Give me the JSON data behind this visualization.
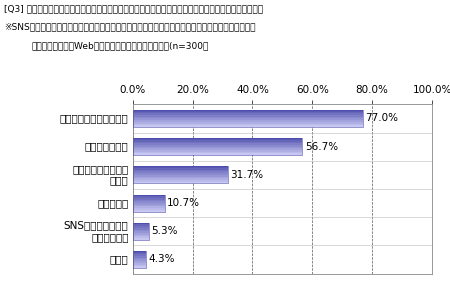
{
  "title_line1": "[Q3] 金融商品に関する情報を収集する際に、インターネット上で参考にするものを全てお答え下さい。",
  "title_line2": "※SNSとはソーシャルネットワークサービスのことで、人と人とのつながりを促進・サポートする、",
  "title_line3": "コミュニティ型のWebサイトをさします（複数回答）(n=300）",
  "categories": [
    "証券・金融会社のサイト",
    "ニュースサイト",
    "投資や金融に関する\nブログ",
    "比較サイト",
    "SNSの投資に関する\nコミュニティ",
    "その他"
  ],
  "values": [
    77.0,
    56.7,
    31.7,
    10.7,
    5.3,
    4.3
  ],
  "labels": [
    "77.0%",
    "56.7%",
    "31.7%",
    "10.7%",
    "5.3%",
    "4.3%"
  ],
  "xlim": [
    0,
    100
  ],
  "xticks": [
    0,
    20,
    40,
    60,
    80,
    100
  ],
  "xticklabels": [
    "0.0%",
    "20.0%",
    "40.0%",
    "60.0%",
    "80.0%",
    "100.0%"
  ],
  "bg_color": "#ffffff",
  "grid_color": "#555555",
  "title_fontsize": 6.5,
  "label_fontsize": 7.5,
  "tick_fontsize": 7.5,
  "bar_height": 0.6,
  "num_stripes": 10,
  "color_light": [
    0.78,
    0.78,
    0.95
  ],
  "color_dark": [
    0.35,
    0.35,
    0.7
  ]
}
